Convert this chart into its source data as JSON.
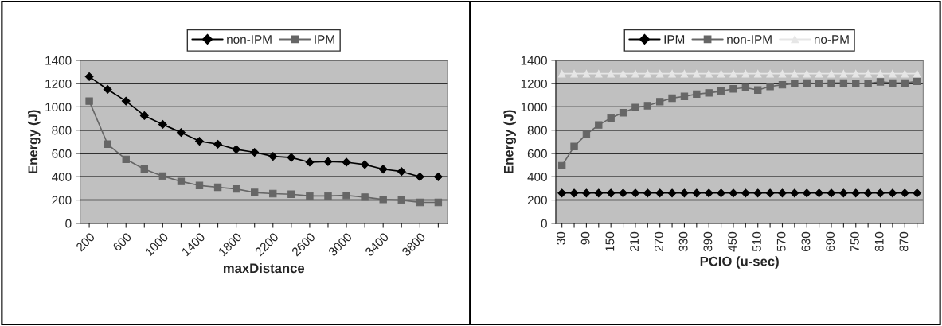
{
  "chart_data": [
    {
      "type": "line",
      "xlabel": "maxDistance",
      "ylabel": "Energy (J)",
      "categories": [
        "200",
        null,
        "600",
        null,
        "1000",
        null,
        "1400",
        null,
        "1800",
        null,
        "2200",
        null,
        "2600",
        null,
        "3000",
        null,
        "3400",
        null,
        "3800",
        null
      ],
      "series": [
        {
          "name": "non-IPM",
          "color": "#000000",
          "marker": "diamond",
          "values": [
            1260,
            1150,
            1050,
            925,
            850,
            780,
            705,
            680,
            635,
            610,
            575,
            565,
            525,
            530,
            525,
            505,
            465,
            445,
            400,
            400
          ]
        },
        {
          "name": "IPM",
          "color": "#666666",
          "marker": "square",
          "values": [
            1050,
            680,
            550,
            465,
            405,
            360,
            325,
            310,
            295,
            265,
            255,
            250,
            235,
            235,
            240,
            225,
            205,
            200,
            180,
            180
          ]
        }
      ],
      "ylim": [
        0,
        1400
      ],
      "yticks": [
        0,
        200,
        400,
        600,
        800,
        1000,
        1200,
        1400
      ],
      "grid": "y",
      "legend": "top"
    },
    {
      "type": "line",
      "xlabel": "PCIO (u-sec)",
      "ylabel": "Energy (J)",
      "categories": [
        "30",
        null,
        "90",
        null,
        "150",
        null,
        "210",
        null,
        "270",
        null,
        "330",
        null,
        "390",
        null,
        "450",
        null,
        "510",
        null,
        "570",
        null,
        "630",
        null,
        "690",
        null,
        "750",
        null,
        "810",
        null,
        "870",
        null
      ],
      "series": [
        {
          "name": "IPM",
          "color": "#000000",
          "marker": "diamond",
          "values": [
            260,
            260,
            260,
            260,
            260,
            260,
            260,
            260,
            260,
            260,
            260,
            260,
            260,
            260,
            260,
            260,
            260,
            260,
            260,
            260,
            260,
            260,
            260,
            260,
            260,
            260,
            260,
            260,
            260,
            260
          ]
        },
        {
          "name": "non-IPM",
          "color": "#666666",
          "marker": "square",
          "values": [
            495,
            660,
            765,
            845,
            905,
            950,
            995,
            1010,
            1045,
            1075,
            1090,
            1110,
            1120,
            1135,
            1155,
            1165,
            1145,
            1175,
            1190,
            1200,
            1205,
            1200,
            1205,
            1205,
            1200,
            1200,
            1215,
            1205,
            1205,
            1220
          ]
        },
        {
          "name": "no-PM",
          "color": "#e6e6e6",
          "marker": "triangle",
          "values": [
            1285,
            1285,
            1285,
            1285,
            1285,
            1285,
            1285,
            1285,
            1285,
            1285,
            1285,
            1285,
            1285,
            1285,
            1285,
            1285,
            1285,
            1285,
            1285,
            1285,
            1285,
            1285,
            1285,
            1285,
            1285,
            1285,
            1285,
            1285,
            1285,
            1285
          ]
        }
      ],
      "ylim": [
        0,
        1400
      ],
      "yticks": [
        0,
        200,
        400,
        600,
        800,
        1000,
        1200,
        1400
      ],
      "grid": "y",
      "legend": "top"
    }
  ]
}
